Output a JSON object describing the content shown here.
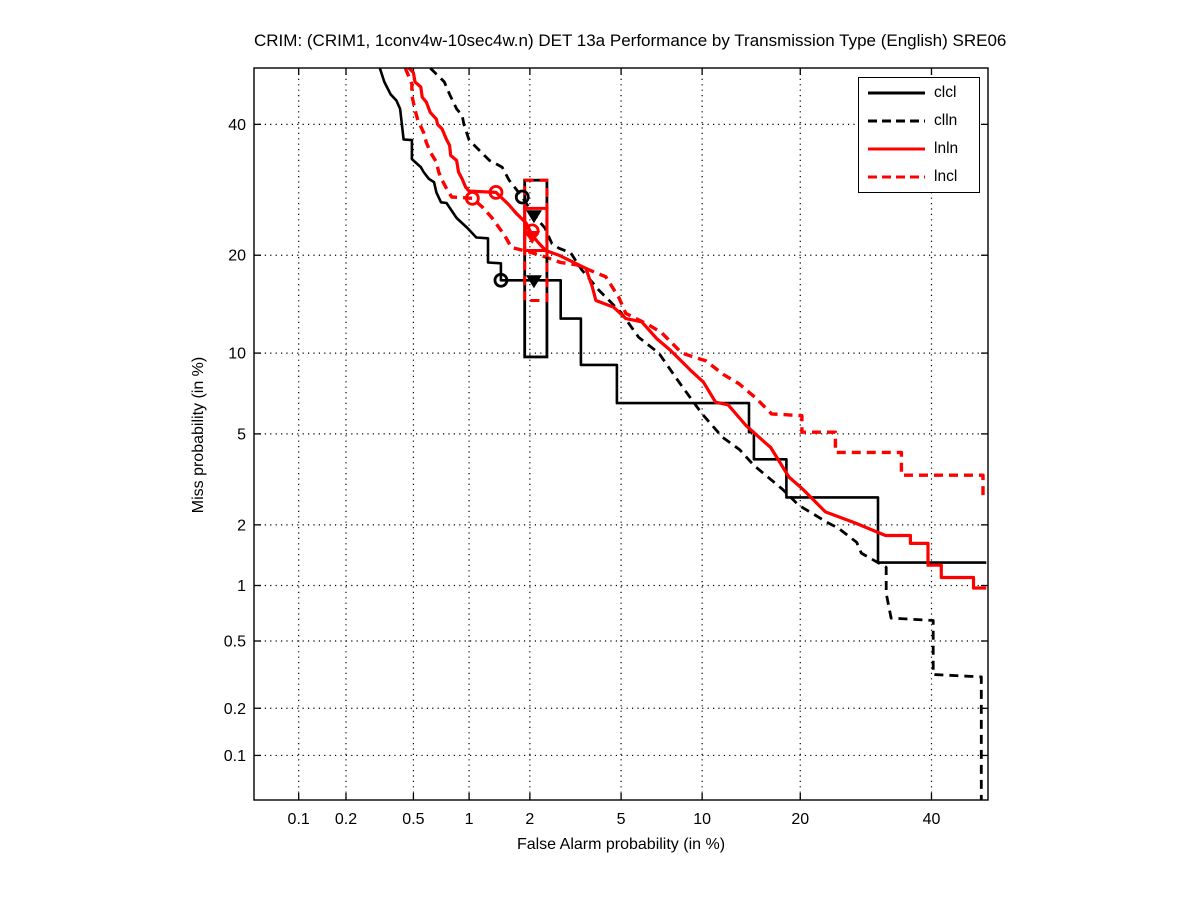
{
  "chart_data": {
    "type": "line",
    "title": "CRIM: (CRIM1, 1conv4w-10sec4w.n) DET 13a Performance by Transmission Type (English) SRE06",
    "xlabel": "False Alarm probability (in %)",
    "ylabel": "Miss probability (in %)",
    "xscale": "probit",
    "yscale": "probit",
    "xlim": [
      0.05,
      50
    ],
    "ylim": [
      0.05,
      50
    ],
    "grid": "dotted",
    "xticks": {
      "values": [
        0.1,
        0.2,
        0.5,
        1,
        2,
        5,
        10,
        20,
        40
      ],
      "labels": [
        "0.1",
        "0.2",
        "0.5",
        "1",
        "2",
        "5",
        "10",
        "20",
        "40"
      ]
    },
    "yticks": {
      "values": [
        0.1,
        0.2,
        0.5,
        1,
        2,
        5,
        10,
        20,
        40
      ],
      "labels": [
        "0.1",
        "0.2",
        "0.5",
        "1",
        "2",
        "5",
        "10",
        "20",
        "40"
      ]
    },
    "legend": {
      "position": "top-right",
      "entries": [
        {
          "label": "clcl",
          "color": "#000000",
          "style": "solid"
        },
        {
          "label": "clln",
          "color": "#000000",
          "style": "dashed"
        },
        {
          "label": "lnln",
          "color": "#ff0000",
          "style": "solid"
        },
        {
          "label": "lncl",
          "color": "#ff0000",
          "style": "dashed"
        }
      ]
    },
    "series": [
      {
        "name": "clcl",
        "color": "#000000",
        "style": "solid",
        "width": 2.6,
        "points": [
          [
            0.32,
            50
          ],
          [
            0.34,
            47.5
          ],
          [
            0.37,
            45.3
          ],
          [
            0.4,
            44.2
          ],
          [
            0.42,
            42.7
          ],
          [
            0.43,
            40
          ],
          [
            0.44,
            37.4
          ],
          [
            0.49,
            37.3
          ],
          [
            0.49,
            34.1
          ],
          [
            0.55,
            32.8
          ],
          [
            0.57,
            32.0
          ],
          [
            0.61,
            30.9
          ],
          [
            0.65,
            30.4
          ],
          [
            0.67,
            28.8
          ],
          [
            0.71,
            27.3
          ],
          [
            0.76,
            27.2
          ],
          [
            0.86,
            25.0
          ],
          [
            0.98,
            23.6
          ],
          [
            1.09,
            22.3
          ],
          [
            1.25,
            22.2
          ],
          [
            1.25,
            19.1
          ],
          [
            1.45,
            19.0
          ],
          [
            1.45,
            17.0
          ],
          [
            2.77,
            17.0
          ],
          [
            2.77,
            13.0
          ],
          [
            3.4,
            13.0
          ],
          [
            3.4,
            9.1
          ],
          [
            4.81,
            9.1
          ],
          [
            4.81,
            6.6
          ],
          [
            14.2,
            6.6
          ],
          [
            14.2,
            5.08
          ],
          [
            14.7,
            5.08
          ],
          [
            14.7,
            3.93
          ],
          [
            18.3,
            3.93
          ],
          [
            18.3,
            2.68
          ],
          [
            31.1,
            2.68
          ],
          [
            31.1,
            1.31
          ],
          [
            49.7,
            1.31
          ]
        ]
      },
      {
        "name": "clln",
        "color": "#000000",
        "style": "dashed",
        "width": 2.8,
        "points": [
          [
            0.62,
            50
          ],
          [
            0.74,
            47.5
          ],
          [
            0.79,
            45.3
          ],
          [
            0.86,
            42.7
          ],
          [
            0.92,
            41.6
          ],
          [
            0.94,
            40
          ],
          [
            1.0,
            37.3
          ],
          [
            1.27,
            33.9
          ],
          [
            1.47,
            32.8
          ],
          [
            1.59,
            30.7
          ],
          [
            1.84,
            28.1
          ],
          [
            2.09,
            25.4
          ],
          [
            2.35,
            23.6
          ],
          [
            2.53,
            21.5
          ],
          [
            2.72,
            20.9
          ],
          [
            3.07,
            20.3
          ],
          [
            3.43,
            18.2
          ],
          [
            4.05,
            15.9
          ],
          [
            4.99,
            13.6
          ],
          [
            5.87,
            11.3
          ],
          [
            7.0,
            10.0
          ],
          [
            8.3,
            7.9
          ],
          [
            10.0,
            6.0
          ],
          [
            11.7,
            4.85
          ],
          [
            13.3,
            4.3
          ],
          [
            14.7,
            3.7
          ],
          [
            17.9,
            2.9
          ],
          [
            19.8,
            2.47
          ],
          [
            23.7,
            2.04
          ],
          [
            25.1,
            1.93
          ],
          [
            27.8,
            1.65
          ],
          [
            28.5,
            1.46
          ],
          [
            32.4,
            1.24
          ],
          [
            32.4,
            0.91
          ],
          [
            33.2,
            0.67
          ],
          [
            40.3,
            0.65
          ],
          [
            40.3,
            0.32
          ],
          [
            48.8,
            0.31
          ],
          [
            48.8,
            0.05
          ]
        ]
      },
      {
        "name": "lnln",
        "color": "#ff0000",
        "style": "solid",
        "width": 3.2,
        "points": [
          [
            0.47,
            50
          ],
          [
            0.5,
            49.2
          ],
          [
            0.51,
            47.5
          ],
          [
            0.55,
            46.6
          ],
          [
            0.56,
            44.8
          ],
          [
            0.59,
            43.9
          ],
          [
            0.62,
            42.1
          ],
          [
            0.67,
            40.9
          ],
          [
            0.68,
            40
          ],
          [
            0.72,
            39.2
          ],
          [
            0.76,
            37.4
          ],
          [
            0.79,
            36.4
          ],
          [
            0.8,
            34.7
          ],
          [
            0.86,
            33.9
          ],
          [
            0.88,
            32.0
          ],
          [
            0.92,
            30.9
          ],
          [
            0.96,
            29.6
          ],
          [
            1.0,
            29.0
          ],
          [
            1.37,
            28.8
          ],
          [
            1.59,
            26.9
          ],
          [
            1.72,
            25.7
          ],
          [
            1.92,
            24.3
          ],
          [
            2.05,
            22.6
          ],
          [
            2.21,
            21.5
          ],
          [
            2.37,
            20.6
          ],
          [
            2.72,
            20.0
          ],
          [
            3.57,
            18.4
          ],
          [
            3.79,
            16.4
          ],
          [
            3.94,
            14.8
          ],
          [
            4.67,
            14.1
          ],
          [
            5.22,
            13.0
          ],
          [
            6.03,
            12.7
          ],
          [
            6.87,
            11.2
          ],
          [
            7.75,
            10.2
          ],
          [
            9.13,
            8.7
          ],
          [
            10.1,
            7.9
          ],
          [
            11.1,
            6.65
          ],
          [
            12.2,
            6.5
          ],
          [
            13.9,
            5.4
          ],
          [
            15.9,
            4.6
          ],
          [
            16.5,
            4.4
          ],
          [
            18.6,
            3.3
          ],
          [
            20.4,
            2.9
          ],
          [
            23.3,
            2.3
          ],
          [
            27.6,
            2.04
          ],
          [
            32.3,
            1.78
          ],
          [
            36.4,
            1.78
          ],
          [
            36.4,
            1.63
          ],
          [
            39.4,
            1.63
          ],
          [
            39.4,
            1.27
          ],
          [
            41.7,
            1.27
          ],
          [
            41.7,
            1.1
          ],
          [
            47.4,
            1.1
          ],
          [
            47.4,
            0.97
          ],
          [
            49.7,
            0.97
          ]
        ]
      },
      {
        "name": "lncl",
        "color": "#ff0000",
        "style": "dashed",
        "width": 3.4,
        "points": [
          [
            0.45,
            50
          ],
          [
            0.49,
            47.1
          ],
          [
            0.49,
            45.1
          ],
          [
            0.51,
            42.5
          ],
          [
            0.53,
            40.7
          ],
          [
            0.57,
            38.6
          ],
          [
            0.59,
            36.9
          ],
          [
            0.62,
            35.3
          ],
          [
            0.67,
            33.6
          ],
          [
            0.69,
            32.0
          ],
          [
            0.72,
            30.7
          ],
          [
            0.77,
            29.1
          ],
          [
            0.81,
            28.1
          ],
          [
            1.04,
            27.9
          ],
          [
            1.17,
            26.6
          ],
          [
            1.31,
            25.0
          ],
          [
            1.45,
            23.3
          ],
          [
            1.54,
            22.2
          ],
          [
            1.63,
            21.0
          ],
          [
            2.0,
            20.4
          ],
          [
            2.35,
            19.8
          ],
          [
            2.77,
            19.1
          ],
          [
            3.27,
            18.8
          ],
          [
            4.33,
            17.4
          ],
          [
            4.9,
            15.1
          ],
          [
            5.22,
            13.5
          ],
          [
            6.42,
            12.4
          ],
          [
            7.17,
            11.7
          ],
          [
            8.5,
            10.0
          ],
          [
            10.3,
            9.4
          ],
          [
            11.8,
            8.4
          ],
          [
            13.2,
            7.8
          ],
          [
            14.9,
            6.9
          ],
          [
            16.6,
            6.0
          ],
          [
            20.2,
            5.9
          ],
          [
            20.2,
            5.08
          ],
          [
            24.7,
            5.08
          ],
          [
            24.7,
            4.2
          ],
          [
            34.9,
            4.2
          ],
          [
            34.9,
            3.36
          ],
          [
            49.1,
            3.36
          ],
          [
            49.1,
            2.6
          ]
        ]
      }
    ],
    "markers": [
      {
        "shape": "circle",
        "color": "#000000",
        "fa": 1.45,
        "miss": 17.0
      },
      {
        "shape": "circle",
        "color": "#000000",
        "fa": 1.84,
        "miss": 28.1
      },
      {
        "shape": "circle",
        "color": "#ff0000",
        "fa": 1.04,
        "miss": 27.9
      },
      {
        "shape": "circle",
        "color": "#ff0000",
        "fa": 1.37,
        "miss": 28.8
      },
      {
        "shape": "circle",
        "color": "#ff0000",
        "fa": 2.05,
        "miss": 23.2
      },
      {
        "shape": "triangle-down",
        "color": "#000000",
        "fa": 2.09,
        "miss": 17.0
      },
      {
        "shape": "triangle-down",
        "color": "#000000",
        "fa": 2.09,
        "miss": 25.4
      },
      {
        "shape": "triangle-down",
        "color": "#ff0000",
        "fa": 2.05,
        "miss": 22.5
      }
    ],
    "boxes": [
      {
        "color": "#000000",
        "style": "solid",
        "width": 2.8,
        "fa": [
          1.89,
          2.4
        ],
        "miss": [
          9.7,
          30.7
        ]
      },
      {
        "color": "#ff0000",
        "style": "dashed",
        "width": 3.0,
        "fa": [
          1.89,
          2.4
        ],
        "miss": [
          14.8,
          30.7
        ]
      },
      {
        "color": "#ff0000",
        "style": "solid",
        "width": 3.0,
        "fa": [
          1.89,
          2.4
        ],
        "miss": [
          20.6,
          26.4
        ]
      }
    ]
  }
}
